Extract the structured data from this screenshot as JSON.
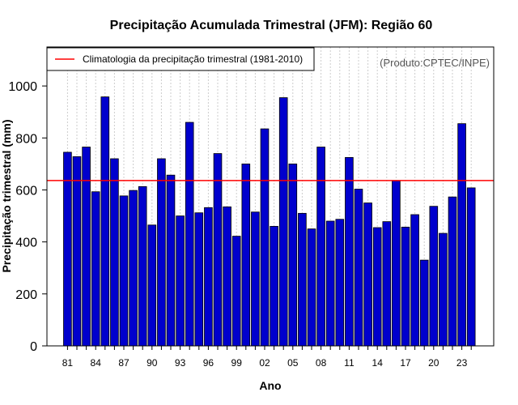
{
  "chart_data": {
    "type": "bar",
    "title": "Precipitação Acumulada Trimestral (JFM): Região 60",
    "xlabel": "Ano",
    "ylabel": "Precipitação trimestral (mm)",
    "credit": "(Produto:CPTEC/INPE)",
    "ylim": [
      0,
      1150
    ],
    "yticks": [
      0,
      200,
      400,
      600,
      800,
      1000
    ],
    "grid": "vertical-dotted",
    "legend": {
      "placement": "top-left",
      "label": "Climatologia da precipitação trimestral (1981-2010)"
    },
    "bar_color": "#0000CD",
    "line_color": "#FF0000",
    "climatology": 636,
    "years": [
      1981,
      1982,
      1983,
      1984,
      1985,
      1986,
      1987,
      1988,
      1989,
      1990,
      1991,
      1992,
      1993,
      1994,
      1995,
      1996,
      1997,
      1998,
      1999,
      2000,
      2001,
      2002,
      2003,
      2004,
      2005,
      2006,
      2007,
      2008,
      2009,
      2010,
      2011,
      2012,
      2013,
      2014,
      2015,
      2016,
      2017,
      2018,
      2019,
      2020,
      2021,
      2022,
      2023,
      2024
    ],
    "categories": [
      "81",
      "82",
      "83",
      "84",
      "85",
      "86",
      "87",
      "88",
      "89",
      "90",
      "91",
      "92",
      "93",
      "94",
      "95",
      "96",
      "97",
      "98",
      "99",
      "00",
      "01",
      "02",
      "03",
      "04",
      "05",
      "06",
      "07",
      "08",
      "09",
      "10",
      "11",
      "12",
      "13",
      "14",
      "15",
      "16",
      "17",
      "18",
      "19",
      "20",
      "21",
      "22",
      "23",
      "24"
    ],
    "tick_labels": [
      "81",
      "84",
      "87",
      "90",
      "93",
      "96",
      "99",
      "02",
      "05",
      "08",
      "11",
      "14",
      "17",
      "20",
      "23"
    ],
    "values": [
      745,
      728,
      765,
      593,
      958,
      720,
      577,
      598,
      613,
      465,
      720,
      657,
      500,
      860,
      512,
      532,
      740,
      535,
      422,
      700,
      515,
      835,
      460,
      955,
      700,
      510,
      450,
      765,
      480,
      487,
      725,
      603,
      550,
      455,
      478,
      635,
      457,
      505,
      330,
      537,
      433,
      573,
      855,
      608
    ]
  }
}
